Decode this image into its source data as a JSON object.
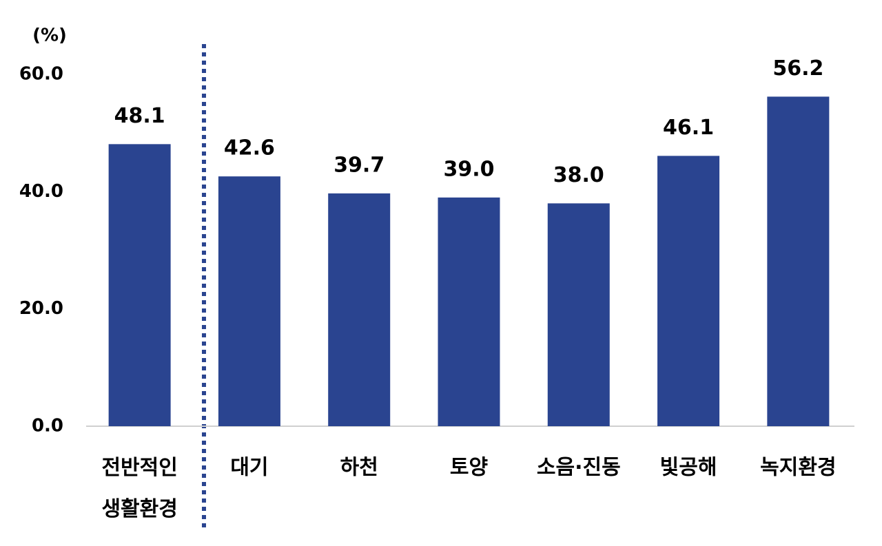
{
  "chart_data": {
    "type": "bar",
    "y_label": "(%)",
    "categories": [
      "전반적인 생활환경",
      "대기",
      "하천",
      "토양",
      "소음·진동",
      "빛공해",
      "녹지환경"
    ],
    "values": [
      48.1,
      42.6,
      39.7,
      39.0,
      38.0,
      46.1,
      56.2
    ],
    "value_labels": [
      "48.1",
      "42.6",
      "39.7",
      "39.0",
      "38.0",
      "46.1",
      "56.2"
    ],
    "color": "#2a4490",
    "ylim": [
      0,
      60
    ],
    "yticks": [
      {
        "value": 0,
        "label": "0.0"
      },
      {
        "value": 20,
        "label": "20.0"
      },
      {
        "value": 40,
        "label": "40.0"
      },
      {
        "value": 60,
        "label": "60.0"
      }
    ],
    "grid": false
  }
}
